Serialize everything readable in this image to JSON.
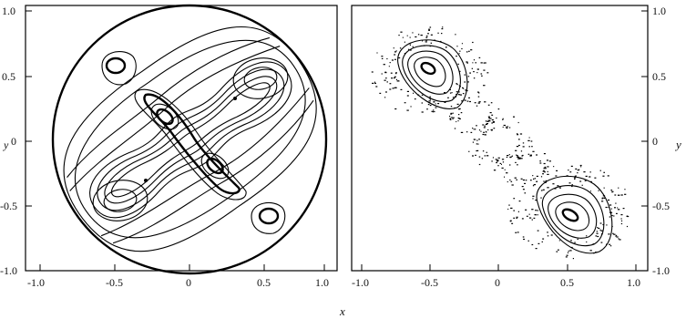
{
  "left_panel": {
    "x_ticks": [
      "-1.0",
      "-0.5",
      "0",
      "0.5",
      "1.0"
    ],
    "y_ticks": [
      "1.0",
      "0.5",
      "0",
      "-0.5",
      "-1.0"
    ],
    "y_label": "y"
  },
  "right_panel": {
    "x_ticks": [
      "-1.0",
      "-0.5",
      "0",
      "0.5",
      "1.0"
    ],
    "y_ticks": [
      "1.0",
      "0.5",
      "0",
      "-0.5",
      "-1.0"
    ],
    "y_label": "y"
  },
  "x_label": "x",
  "colors": {
    "ink": "#000000",
    "background": "#ffffff"
  }
}
